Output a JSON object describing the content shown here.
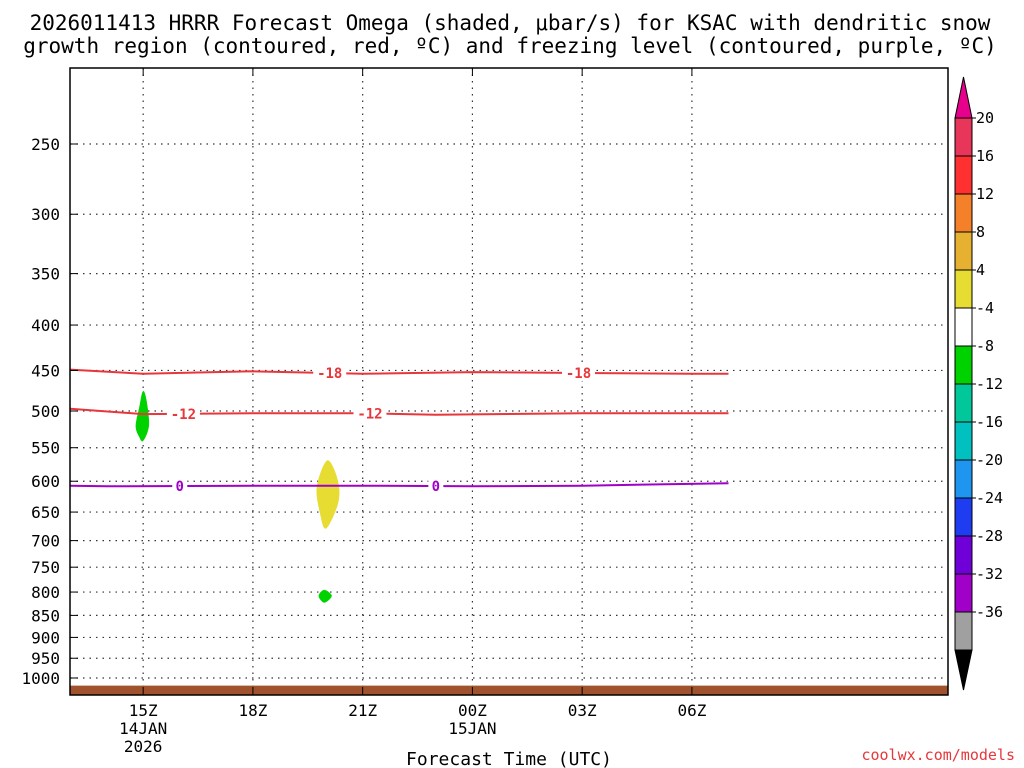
{
  "chart_data": {
    "type": "heatmap",
    "title": "2026011413 HRRR Forecast Omega (shaded, μbar/s) for KSAC with dendritic snow growth region (contoured, red, ºC) and freezing level (contoured, purple, ºC)",
    "title_lines": [
      "2026011413 HRRR Forecast Omega (shaded, μbar/s) for KSAC with dendritic snow",
      "growth region (contoured, red, ºC) and freezing level (contoured, purple, ºC)"
    ],
    "xlabel": "Forecast Time (UTC)",
    "credit": "coolwx.com/models",
    "x_hours_range": [
      13,
      37
    ],
    "x_ticks": [
      {
        "hour": 15,
        "lines": [
          "15Z",
          "14JAN",
          "2026"
        ]
      },
      {
        "hour": 18,
        "lines": [
          "18Z"
        ]
      },
      {
        "hour": 21,
        "lines": [
          "21Z"
        ]
      },
      {
        "hour": 24,
        "lines": [
          "00Z",
          "15JAN"
        ]
      },
      {
        "hour": 27,
        "lines": [
          "03Z"
        ]
      },
      {
        "hour": 30,
        "lines": [
          "06Z"
        ]
      }
    ],
    "y_ticks": [
      250,
      300,
      350,
      400,
      450,
      500,
      550,
      600,
      650,
      700,
      750,
      800,
      850,
      900,
      950,
      1000
    ],
    "y_range_hpa": [
      200,
      1030
    ],
    "ground_hpa": 1020,
    "ground_color": "#a0522d",
    "contours": [
      {
        "name": "dgz-minus18",
        "label": "-18",
        "color": "#e8363a",
        "points": [
          [
            13,
            449
          ],
          [
            15,
            454
          ],
          [
            18,
            451
          ],
          [
            21,
            454
          ],
          [
            24,
            452
          ],
          [
            27,
            453
          ],
          [
            30,
            454
          ],
          [
            31,
            454
          ]
        ],
        "label_hours": [
          20.1,
          26.9
        ]
      },
      {
        "name": "dgz-minus12",
        "label": "-12",
        "color": "#e8363a",
        "points": [
          [
            13,
            497
          ],
          [
            15,
            504
          ],
          [
            18,
            503
          ],
          [
            21,
            503
          ],
          [
            23,
            505
          ],
          [
            27,
            503
          ],
          [
            31,
            503
          ]
        ],
        "label_hours": [
          16.1,
          21.2
        ]
      },
      {
        "name": "freezing-level",
        "label": "0",
        "color": "#a000c8",
        "points": [
          [
            13,
            607
          ],
          [
            14,
            608
          ],
          [
            18,
            607
          ],
          [
            21,
            607
          ],
          [
            24,
            608
          ],
          [
            27,
            607
          ],
          [
            31,
            603
          ]
        ],
        "label_hours": [
          16.0,
          23.0
        ]
      }
    ],
    "omega_areas": [
      {
        "name": "omega-area-15z",
        "value_range": [
          -8,
          -4
        ],
        "color": "#00d200",
        "points": [
          [
            14.9,
            535
          ],
          [
            14.8,
            520
          ],
          [
            14.9,
            495
          ],
          [
            15.0,
            475
          ],
          [
            15.1,
            490
          ],
          [
            15.15,
            520
          ],
          [
            15.0,
            540
          ]
        ]
      },
      {
        "name": "omega-area-20z-upper",
        "value_range": [
          4,
          8
        ],
        "color": "#e6dc32",
        "points": [
          [
            20.0,
            570
          ],
          [
            19.75,
            610
          ],
          [
            19.85,
            655
          ],
          [
            20.0,
            678
          ],
          [
            20.3,
            640
          ],
          [
            20.35,
            610
          ],
          [
            20.2,
            580
          ]
        ]
      },
      {
        "name": "omega-area-20z-lower",
        "value_range": [
          -8,
          -4
        ],
        "color": "#00d200",
        "points": [
          [
            19.95,
            796
          ],
          [
            19.8,
            808
          ],
          [
            19.95,
            822
          ],
          [
            20.15,
            808
          ]
        ]
      }
    ],
    "colorbar": {
      "units": "μbar/s",
      "labels": [
        "20",
        "16",
        "12",
        "8",
        "4",
        "-4",
        "-8",
        "-12",
        "-16",
        "-20",
        "-24",
        "-28",
        "-32",
        "-36"
      ],
      "colors": [
        "#e8355a",
        "#ff3030",
        "#f5802a",
        "#e6b030",
        "#e6dc32",
        "#ffffff",
        "#00d200",
        "#00c89a",
        "#00c0c0",
        "#1e96f0",
        "#1e3cf0",
        "#7000d8",
        "#a000c8",
        "#a0a0a0"
      ],
      "top_arrow_color": "#e6008c",
      "bottom_arrow_color": "#000000"
    }
  }
}
